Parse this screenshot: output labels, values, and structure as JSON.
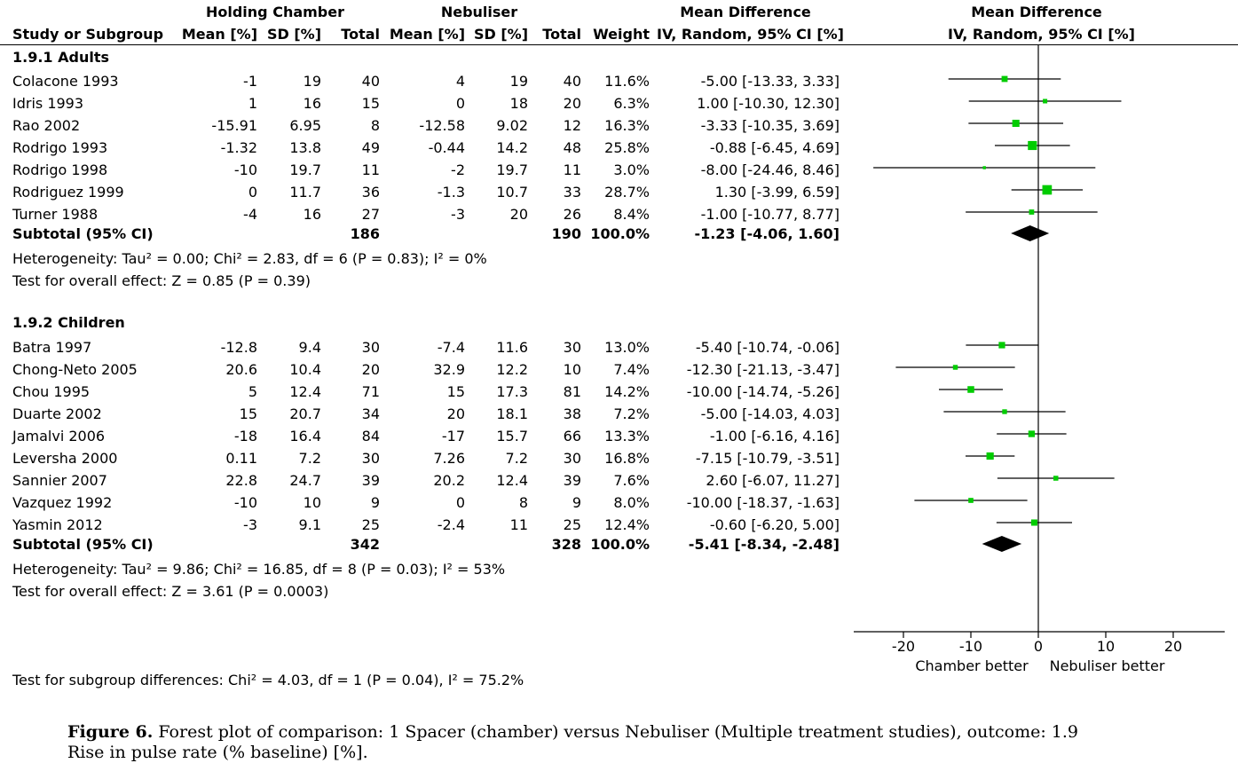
{
  "header": {
    "group1": "Holding Chamber",
    "group2": "Nebuliser",
    "md_text": "Mean Difference",
    "md_plot": "Mean Difference",
    "col_study": "Study or Subgroup",
    "col_mean1": "Mean [%]",
    "col_sd1": "SD [%]",
    "col_total1": "Total",
    "col_mean2": "Mean [%]",
    "col_sd2": "SD [%]",
    "col_total2": "Total",
    "col_weight": "Weight",
    "col_ci": "IV, Random, 95% CI [%]",
    "col_ci_plot": "IV, Random, 95% CI [%]"
  },
  "subgroups": [
    {
      "title": "1.9.1 Adults",
      "studies": [
        {
          "name": "Colacone 1993",
          "m1": "-1",
          "sd1": "19",
          "n1": "40",
          "m2": "4",
          "sd2": "19",
          "n2": "40",
          "weight": "11.6%",
          "ci": "-5.00 [-13.33, 3.33]"
        },
        {
          "name": "Idris 1993",
          "m1": "1",
          "sd1": "16",
          "n1": "15",
          "m2": "0",
          "sd2": "18",
          "n2": "20",
          "weight": "6.3%",
          "ci": "1.00 [-10.30, 12.30]"
        },
        {
          "name": "Rao 2002",
          "m1": "-15.91",
          "sd1": "6.95",
          "n1": "8",
          "m2": "-12.58",
          "sd2": "9.02",
          "n2": "12",
          "weight": "16.3%",
          "ci": "-3.33 [-10.35, 3.69]"
        },
        {
          "name": "Rodrigo 1993",
          "m1": "-1.32",
          "sd1": "13.8",
          "n1": "49",
          "m2": "-0.44",
          "sd2": "14.2",
          "n2": "48",
          "weight": "25.8%",
          "ci": "-0.88 [-6.45, 4.69]"
        },
        {
          "name": "Rodrigo 1998",
          "m1": "-10",
          "sd1": "19.7",
          "n1": "11",
          "m2": "-2",
          "sd2": "19.7",
          "n2": "11",
          "weight": "3.0%",
          "ci": "-8.00 [-24.46, 8.46]"
        },
        {
          "name": "Rodriguez 1999",
          "m1": "0",
          "sd1": "11.7",
          "n1": "36",
          "m2": "-1.3",
          "sd2": "10.7",
          "n2": "33",
          "weight": "28.7%",
          "ci": "1.30 [-3.99, 6.59]"
        },
        {
          "name": "Turner 1988",
          "m1": "-4",
          "sd1": "16",
          "n1": "27",
          "m2": "-3",
          "sd2": "20",
          "n2": "26",
          "weight": "8.4%",
          "ci": "-1.00 [-10.77, 8.77]"
        }
      ],
      "subtotal": {
        "label": "Subtotal (95% CI)",
        "n1": "186",
        "n2": "190",
        "weight": "100.0%",
        "ci": "-1.23 [-4.06, 1.60]"
      },
      "heterogeneity": "Heterogeneity: Tau² = 0.00; Chi² = 2.83, df = 6 (P = 0.83); I² = 0%",
      "overall": "Test for overall effect: Z = 0.85 (P = 0.39)"
    },
    {
      "title": "1.9.2 Children",
      "studies": [
        {
          "name": "Batra 1997",
          "m1": "-12.8",
          "sd1": "9.4",
          "n1": "30",
          "m2": "-7.4",
          "sd2": "11.6",
          "n2": "30",
          "weight": "13.0%",
          "ci": "-5.40 [-10.74, -0.06]"
        },
        {
          "name": "Chong-Neto 2005",
          "m1": "20.6",
          "sd1": "10.4",
          "n1": "20",
          "m2": "32.9",
          "sd2": "12.2",
          "n2": "10",
          "weight": "7.4%",
          "ci": "-12.30 [-21.13, -3.47]"
        },
        {
          "name": "Chou 1995",
          "m1": "5",
          "sd1": "12.4",
          "n1": "71",
          "m2": "15",
          "sd2": "17.3",
          "n2": "81",
          "weight": "14.2%",
          "ci": "-10.00 [-14.74, -5.26]"
        },
        {
          "name": "Duarte 2002",
          "m1": "15",
          "sd1": "20.7",
          "n1": "34",
          "m2": "20",
          "sd2": "18.1",
          "n2": "38",
          "weight": "7.2%",
          "ci": "-5.00 [-14.03, 4.03]"
        },
        {
          "name": "Jamalvi 2006",
          "m1": "-18",
          "sd1": "16.4",
          "n1": "84",
          "m2": "-17",
          "sd2": "15.7",
          "n2": "66",
          "weight": "13.3%",
          "ci": "-1.00 [-6.16, 4.16]"
        },
        {
          "name": "Leversha 2000",
          "m1": "0.11",
          "sd1": "7.2",
          "n1": "30",
          "m2": "7.26",
          "sd2": "7.2",
          "n2": "30",
          "weight": "16.8%",
          "ci": "-7.15 [-10.79, -3.51]"
        },
        {
          "name": "Sannier 2007",
          "m1": "22.8",
          "sd1": "24.7",
          "n1": "39",
          "m2": "20.2",
          "sd2": "12.4",
          "n2": "39",
          "weight": "7.6%",
          "ci": "2.60 [-6.07, 11.27]"
        },
        {
          "name": "Vazquez 1992",
          "m1": "-10",
          "sd1": "10",
          "n1": "9",
          "m2": "0",
          "sd2": "8",
          "n2": "9",
          "weight": "8.0%",
          "ci": "-10.00 [-18.37, -1.63]"
        },
        {
          "name": "Yasmin 2012",
          "m1": "-3",
          "sd1": "9.1",
          "n1": "25",
          "m2": "-2.4",
          "sd2": "11",
          "n2": "25",
          "weight": "12.4%",
          "ci": "-0.60 [-6.20, 5.00]"
        }
      ],
      "subtotal": {
        "label": "Subtotal (95% CI)",
        "n1": "342",
        "n2": "328",
        "weight": "100.0%",
        "ci": "-5.41 [-8.34, -2.48]"
      },
      "heterogeneity": "Heterogeneity: Tau² = 9.86; Chi² = 16.85, df = 8 (P = 0.03); I² = 53%",
      "overall": "Test for overall effect: Z = 3.61 (P = 0.0003)"
    }
  ],
  "subgroup_test": "Test for subgroup differences: Chi² = 4.03, df = 1 (P = 0.04), I² = 75.2%",
  "axis": {
    "left_label": "Chamber better",
    "right_label": "Nebuliser better"
  },
  "caption": {
    "label": "Figure 6.",
    "text_line1": "Forest plot of comparison: 1 Spacer (chamber) versus Nebuliser (Multiple treatment studies), outcome: 1.9",
    "text_line2": "Rise in pulse rate (% baseline) [%]."
  },
  "colors": {
    "marker": "#00cc00",
    "line": "#000000"
  },
  "chart_data": {
    "type": "forest",
    "xlim": [
      -25,
      28
    ],
    "xticks": [
      -20,
      -10,
      0,
      10,
      20
    ],
    "tick_labels": [
      "-20",
      "-10",
      "0",
      "10",
      "20"
    ],
    "groups": [
      {
        "name": "1.9.1 Adults",
        "points": [
          {
            "md": -5.0,
            "lo": -13.33,
            "hi": 3.33,
            "w": 11.6
          },
          {
            "md": 1.0,
            "lo": -10.3,
            "hi": 12.3,
            "w": 6.3
          },
          {
            "md": -3.33,
            "lo": -10.35,
            "hi": 3.69,
            "w": 16.3
          },
          {
            "md": -0.88,
            "lo": -6.45,
            "hi": 4.69,
            "w": 25.8
          },
          {
            "md": -8.0,
            "lo": -24.46,
            "hi": 8.46,
            "w": 3.0
          },
          {
            "md": 1.3,
            "lo": -3.99,
            "hi": 6.59,
            "w": 28.7
          },
          {
            "md": -1.0,
            "lo": -10.77,
            "hi": 8.77,
            "w": 8.4
          }
        ],
        "pooled": {
          "md": -1.23,
          "lo": -4.06,
          "hi": 1.6
        }
      },
      {
        "name": "1.9.2 Children",
        "points": [
          {
            "md": -5.4,
            "lo": -10.74,
            "hi": -0.06,
            "w": 13.0
          },
          {
            "md": -12.3,
            "lo": -21.13,
            "hi": -3.47,
            "w": 7.4
          },
          {
            "md": -10.0,
            "lo": -14.74,
            "hi": -5.26,
            "w": 14.2
          },
          {
            "md": -5.0,
            "lo": -14.03,
            "hi": 4.03,
            "w": 7.2
          },
          {
            "md": -1.0,
            "lo": -6.16,
            "hi": 4.16,
            "w": 13.3
          },
          {
            "md": -7.15,
            "lo": -10.79,
            "hi": -3.51,
            "w": 16.8
          },
          {
            "md": 2.6,
            "lo": -6.07,
            "hi": 11.27,
            "w": 7.6
          },
          {
            "md": -10.0,
            "lo": -18.37,
            "hi": -1.63,
            "w": 8.0
          },
          {
            "md": -0.6,
            "lo": -6.2,
            "hi": 5.0,
            "w": 12.4
          }
        ],
        "pooled": {
          "md": -5.41,
          "lo": -8.34,
          "hi": -2.48
        }
      }
    ]
  }
}
